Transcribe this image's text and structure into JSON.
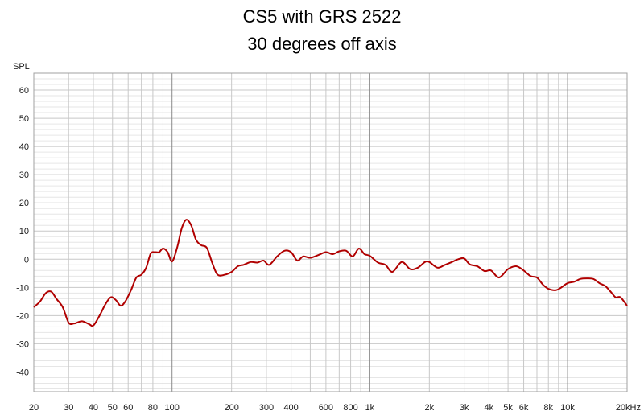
{
  "chart_data": {
    "type": "line",
    "title": "CS5 with GRS 2522",
    "subtitle": "30 degrees off axis",
    "ylabel": "SPL",
    "xlabel": "",
    "xscale": "log",
    "xlim": [
      20,
      20000
    ],
    "ylim": [
      -47,
      66
    ],
    "y_ticks": [
      60,
      50,
      40,
      30,
      20,
      10,
      0,
      -10,
      -20,
      -30,
      -40
    ],
    "x_ticks": [
      {
        "value": 20,
        "label": "20"
      },
      {
        "value": 30,
        "label": "30"
      },
      {
        "value": 40,
        "label": "40"
      },
      {
        "value": 50,
        "label": "50"
      },
      {
        "value": 60,
        "label": "60"
      },
      {
        "value": 80,
        "label": "80"
      },
      {
        "value": 100,
        "label": "100"
      },
      {
        "value": 200,
        "label": "200"
      },
      {
        "value": 300,
        "label": "300"
      },
      {
        "value": 400,
        "label": "400"
      },
      {
        "value": 600,
        "label": "600"
      },
      {
        "value": 800,
        "label": "800"
      },
      {
        "value": 1000,
        "label": "1k"
      },
      {
        "value": 2000,
        "label": "2k"
      },
      {
        "value": 3000,
        "label": "3k"
      },
      {
        "value": 4000,
        "label": "4k"
      },
      {
        "value": 5000,
        "label": "5k"
      },
      {
        "value": 6000,
        "label": "6k"
      },
      {
        "value": 8000,
        "label": "8k"
      },
      {
        "value": 10000,
        "label": "10k"
      },
      {
        "value": 20000,
        "label": "20kHz"
      }
    ],
    "grid": true,
    "series_color": "#b00000",
    "x": [
      20,
      21.5,
      23,
      24.5,
      26,
      28,
      30,
      32,
      35,
      38,
      40,
      43,
      46,
      49,
      52,
      55,
      58,
      62,
      66,
      70,
      74,
      78,
      82,
      86,
      90,
      95,
      100,
      106,
      112,
      118,
      125,
      132,
      140,
      150,
      160,
      170,
      185,
      200,
      215,
      230,
      250,
      270,
      290,
      310,
      340,
      370,
      400,
      430,
      460,
      500,
      550,
      600,
      650,
      700,
      760,
      820,
      880,
      940,
      1000,
      1100,
      1200,
      1300,
      1450,
      1600,
      1750,
      1900,
      2000,
      2200,
      2400,
      2600,
      2800,
      3000,
      3200,
      3500,
      3800,
      4100,
      4500,
      5000,
      5500,
      6000,
      6500,
      7000,
      7500,
      8000,
      8700,
      9300,
      10000,
      10800,
      11600,
      12500,
      13500,
      14500,
      15500,
      16500,
      17500,
      18500,
      20000
    ],
    "y": [
      -17,
      -15,
      -12,
      -11.5,
      -14,
      -17,
      -22.5,
      -22.8,
      -22,
      -23,
      -23.5,
      -20,
      -16,
      -13.5,
      -14.5,
      -16.5,
      -15,
      -11,
      -6.5,
      -5.5,
      -3,
      2,
      2.5,
      2.5,
      3.8,
      2.5,
      -0.8,
      4,
      11,
      14,
      12,
      7,
      5,
      4,
      -1.5,
      -5.5,
      -5.5,
      -4.5,
      -2.5,
      -2,
      -1,
      -1.2,
      -0.5,
      -2,
      1,
      3,
      2.5,
      -0.5,
      1,
      0.5,
      1.5,
      2.5,
      1.8,
      2.8,
      3,
      1,
      3.8,
      1.8,
      1.2,
      -1.2,
      -2,
      -4.5,
      -1,
      -3.5,
      -3,
      -1,
      -1,
      -3,
      -2,
      -1,
      0,
      0.3,
      -1.8,
      -2.5,
      -4.2,
      -4,
      -6.5,
      -3.5,
      -2.5,
      -4,
      -6,
      -6.5,
      -9,
      -10.5,
      -11,
      -10,
      -8.5,
      -8,
      -7,
      -6.8,
      -7,
      -8.5,
      -9.5,
      -11.5,
      -13.5,
      -13.5,
      -16.5
    ]
  }
}
